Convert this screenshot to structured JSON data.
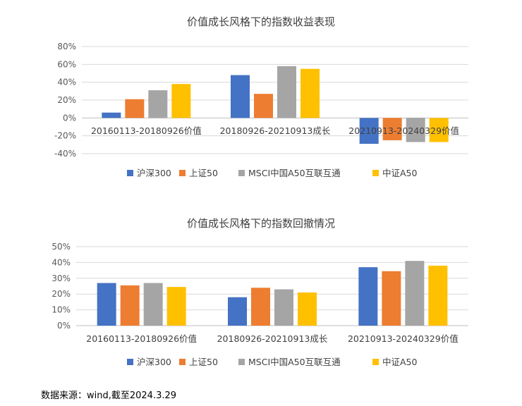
{
  "chart_data": [
    {
      "type": "bar",
      "title": "价值成长风格下的指数收益表现",
      "categories": [
        "20160113-20180926价值",
        "20180926-20210913成长",
        "20210913-20240329价值"
      ],
      "series": [
        {
          "name": "沪深300",
          "values": [
            6,
            48,
            -29
          ]
        },
        {
          "name": "上证50",
          "values": [
            21,
            27,
            -25
          ]
        },
        {
          "name": "MSCI中国A50互联互通",
          "values": [
            31,
            58,
            -27
          ]
        },
        {
          "name": "中证A50",
          "values": [
            38,
            55,
            -27
          ]
        }
      ],
      "ylim": [
        -40,
        80
      ],
      "yticks": [
        -40,
        -20,
        0,
        20,
        40,
        60,
        80
      ],
      "yformat": "percent",
      "grid": true,
      "legend": "bottom"
    },
    {
      "type": "bar",
      "title": "价值成长风格下的指数回撤情况",
      "categories": [
        "20160113-20180926价值",
        "20180926-20210913成长",
        "20210913-20240329价值"
      ],
      "series": [
        {
          "name": "沪深300",
          "values": [
            27,
            18,
            37
          ]
        },
        {
          "name": "上证50",
          "values": [
            25.5,
            24,
            34.5
          ]
        },
        {
          "name": "MSCI中国A50互联互通",
          "values": [
            27,
            23,
            41
          ]
        },
        {
          "name": "中证A50",
          "values": [
            24.5,
            21,
            38
          ]
        }
      ],
      "ylim": [
        0,
        50
      ],
      "yticks": [
        0,
        10,
        20,
        30,
        40,
        50
      ],
      "yformat": "percent",
      "grid": true,
      "legend": "bottom"
    }
  ],
  "colors": [
    "#4472C4",
    "#ED7D31",
    "#A5A5A5",
    "#FFC000"
  ],
  "source_text": "数据来源：wind,截至2024.3.29"
}
